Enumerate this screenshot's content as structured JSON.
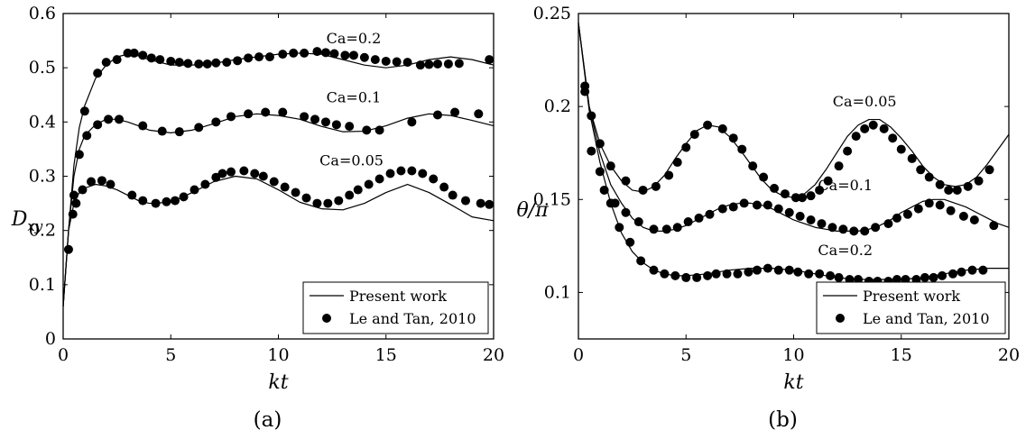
{
  "chart_data": [
    {
      "type": "line",
      "panel_label": "(a)",
      "xlabel": "kt",
      "ylabel": {
        "main": "D",
        "sub": "xy"
      },
      "xlim": [
        0,
        20
      ],
      "ylim": [
        0,
        0.6
      ],
      "xticks": [
        "0",
        "5",
        "10",
        "15",
        "20"
      ],
      "xtick_values": [
        0,
        5,
        10,
        15,
        20
      ],
      "yticks": [
        "0",
        "0.1",
        "0.2",
        "0.3",
        "0.4",
        "0.5",
        "0.6"
      ],
      "ytick_values": [
        0,
        0.1,
        0.2,
        0.3,
        0.4,
        0.5,
        0.6
      ],
      "legend": {
        "position": "bottom-right",
        "entries": [
          "Present work",
          "Le and Tan, 2010"
        ]
      },
      "annotations": [
        {
          "text": "Ca=0.2",
          "x": 13.5,
          "y": 0.545
        },
        {
          "text": "Ca=0.1",
          "x": 13.5,
          "y": 0.436
        },
        {
          "text": "Ca=0.05",
          "x": 13.4,
          "y": 0.32
        }
      ],
      "series": [
        {
          "label": "Ca=0.2",
          "kind": "line",
          "x": [
            0,
            0.25,
            0.5,
            0.75,
            1,
            1.5,
            2,
            2.5,
            3,
            3.5,
            4,
            5,
            6,
            7,
            8,
            9,
            10,
            11,
            12,
            13,
            14,
            15,
            16,
            17,
            18,
            19,
            20
          ],
          "y": [
            0.06,
            0.2,
            0.32,
            0.39,
            0.43,
            0.48,
            0.505,
            0.52,
            0.525,
            0.522,
            0.515,
            0.505,
            0.505,
            0.508,
            0.515,
            0.52,
            0.525,
            0.527,
            0.525,
            0.515,
            0.505,
            0.5,
            0.505,
            0.515,
            0.52,
            0.515,
            0.505
          ]
        },
        {
          "label": "Ca=0.2",
          "kind": "scatter",
          "x": [
            0.25,
            0.5,
            0.75,
            1,
            1.6,
            2,
            2.5,
            3,
            3.3,
            3.7,
            4.1,
            4.5,
            5,
            5.4,
            5.8,
            6.3,
            6.7,
            7.1,
            7.6,
            8.1,
            8.6,
            9.1,
            9.6,
            10.2,
            10.7,
            11.2,
            11.8,
            12.2,
            12.6,
            13.1,
            13.5,
            14,
            14.5,
            15,
            15.5,
            16,
            16.6,
            17,
            17.4,
            17.9,
            18.4,
            19.8
          ],
          "y": [
            0.165,
            0.265,
            0.34,
            0.42,
            0.49,
            0.51,
            0.515,
            0.527,
            0.527,
            0.523,
            0.518,
            0.515,
            0.512,
            0.51,
            0.508,
            0.507,
            0.507,
            0.509,
            0.51,
            0.513,
            0.518,
            0.52,
            0.52,
            0.525,
            0.527,
            0.527,
            0.53,
            0.528,
            0.526,
            0.523,
            0.523,
            0.519,
            0.515,
            0.512,
            0.511,
            0.51,
            0.505,
            0.506,
            0.507,
            0.507,
            0.508,
            0.515
          ]
        },
        {
          "label": "Ca=0.1",
          "kind": "line",
          "x": [
            0,
            0.25,
            0.5,
            0.75,
            1,
            1.5,
            2,
            2.5,
            3,
            3.5,
            4,
            5,
            6,
            7,
            8,
            9,
            10,
            11,
            12,
            13,
            14,
            15,
            16,
            17,
            18,
            19,
            20
          ],
          "y": [
            0.06,
            0.2,
            0.3,
            0.35,
            0.375,
            0.395,
            0.405,
            0.405,
            0.4,
            0.393,
            0.385,
            0.38,
            0.385,
            0.397,
            0.41,
            0.415,
            0.412,
            0.405,
            0.392,
            0.382,
            0.383,
            0.393,
            0.407,
            0.415,
            0.412,
            0.403,
            0.393
          ]
        },
        {
          "label": "Ca=0.1",
          "kind": "scatter",
          "x": [
            1.1,
            1.6,
            2.1,
            2.6,
            3.7,
            4.6,
            5.4,
            6.3,
            7.1,
            7.8,
            8.6,
            9.4,
            10.2,
            11.2,
            11.7,
            12.2,
            12.7,
            13.3,
            14.1,
            14.7,
            16.2,
            17.4,
            18.2,
            19.3
          ],
          "y": [
            0.375,
            0.395,
            0.405,
            0.405,
            0.393,
            0.383,
            0.382,
            0.39,
            0.4,
            0.41,
            0.415,
            0.418,
            0.418,
            0.41,
            0.405,
            0.4,
            0.395,
            0.392,
            0.385,
            0.385,
            0.4,
            0.413,
            0.418,
            0.415
          ]
        },
        {
          "label": "Ca=0.05",
          "kind": "line",
          "x": [
            0,
            0.25,
            0.5,
            0.75,
            1,
            1.5,
            2,
            2.5,
            3,
            3.5,
            4,
            5,
            6,
            7,
            8,
            9,
            10,
            11,
            12,
            13,
            14,
            15,
            16,
            17,
            18,
            19,
            20
          ],
          "y": [
            0.06,
            0.2,
            0.25,
            0.27,
            0.278,
            0.285,
            0.282,
            0.275,
            0.265,
            0.255,
            0.25,
            0.252,
            0.27,
            0.29,
            0.3,
            0.295,
            0.275,
            0.252,
            0.24,
            0.238,
            0.25,
            0.27,
            0.285,
            0.27,
            0.248,
            0.225,
            0.218
          ]
        },
        {
          "label": "Ca=0.05",
          "kind": "scatter",
          "x": [
            0.45,
            0.6,
            0.9,
            1.3,
            1.8,
            2.2,
            3.2,
            3.7,
            4.3,
            4.8,
            5.2,
            5.6,
            6.1,
            6.6,
            7.1,
            7.4,
            7.8,
            8.4,
            8.9,
            9.3,
            9.8,
            10.3,
            10.8,
            11.3,
            11.8,
            12.3,
            12.8,
            13.3,
            13.7,
            14.2,
            14.7,
            15.2,
            15.7,
            16.2,
            16.7,
            17.2,
            17.7,
            18.1,
            18.7,
            19.4,
            19.8
          ],
          "y": [
            0.23,
            0.25,
            0.275,
            0.29,
            0.292,
            0.285,
            0.265,
            0.255,
            0.25,
            0.253,
            0.255,
            0.262,
            0.275,
            0.285,
            0.298,
            0.305,
            0.308,
            0.31,
            0.305,
            0.3,
            0.29,
            0.28,
            0.27,
            0.26,
            0.25,
            0.25,
            0.255,
            0.265,
            0.275,
            0.285,
            0.295,
            0.305,
            0.31,
            0.31,
            0.305,
            0.295,
            0.28,
            0.265,
            0.255,
            0.25,
            0.248
          ]
        }
      ]
    },
    {
      "type": "line",
      "panel_label": "(b)",
      "xlabel": "kt",
      "ylabel": {
        "main": "θ/π"
      },
      "xlim": [
        0,
        20
      ],
      "ylim": [
        0.075,
        0.25
      ],
      "xticks": [
        "0",
        "5",
        "10",
        "15",
        "20"
      ],
      "xtick_values": [
        0,
        5,
        10,
        15,
        20
      ],
      "yticks": [
        "0.1",
        "0.15",
        "0.2",
        "0.25"
      ],
      "ytick_values": [
        0.1,
        0.15,
        0.2,
        0.25
      ],
      "legend": {
        "position": "bottom-right",
        "entries": [
          "Present work",
          "Le and Tan, 2010"
        ]
      },
      "annotations": [
        {
          "text": "Ca=0.05",
          "x": 13.3,
          "y": 0.2
        },
        {
          "text": "Ca=0.1",
          "x": 12.4,
          "y": 0.155
        },
        {
          "text": "Ca=0.2",
          "x": 12.4,
          "y": 0.12
        }
      ],
      "series": [
        {
          "label": "Ca=0.05",
          "kind": "line",
          "x": [
            0,
            0.5,
            1,
            1.5,
            2,
            2.5,
            3,
            3.5,
            4,
            4.5,
            5,
            5.5,
            6,
            6.5,
            7,
            7.5,
            8,
            8.5,
            9,
            9.5,
            10,
            10.5,
            11,
            11.5,
            12,
            12.5,
            13,
            13.5,
            14,
            14.5,
            15,
            15.5,
            16,
            16.5,
            17,
            17.5,
            18,
            18.5,
            19,
            19.5,
            20
          ],
          "y": [
            0.245,
            0.2,
            0.18,
            0.168,
            0.16,
            0.155,
            0.154,
            0.157,
            0.163,
            0.172,
            0.18,
            0.187,
            0.19,
            0.189,
            0.184,
            0.177,
            0.169,
            0.161,
            0.155,
            0.152,
            0.151,
            0.153,
            0.158,
            0.166,
            0.175,
            0.184,
            0.19,
            0.193,
            0.193,
            0.189,
            0.183,
            0.176,
            0.168,
            0.162,
            0.158,
            0.157,
            0.158,
            0.162,
            0.169,
            0.177,
            0.185
          ]
        },
        {
          "label": "Ca=0.05",
          "kind": "scatter",
          "x": [
            0.3,
            0.6,
            1,
            1.5,
            2.2,
            3,
            3.6,
            4.2,
            4.6,
            5,
            5.4,
            6,
            6.7,
            7.2,
            7.6,
            8.1,
            8.6,
            9.1,
            9.6,
            10.1,
            10.4,
            10.8,
            11.2,
            11.6,
            12.1,
            12.5,
            12.9,
            13.3,
            13.7,
            14.2,
            14.6,
            15,
            15.5,
            15.9,
            16.3,
            16.8,
            17.2,
            17.6,
            18.1,
            18.6,
            19.1
          ],
          "y": [
            0.208,
            0.195,
            0.18,
            0.168,
            0.16,
            0.155,
            0.157,
            0.163,
            0.17,
            0.178,
            0.185,
            0.19,
            0.188,
            0.183,
            0.177,
            0.168,
            0.162,
            0.156,
            0.153,
            0.151,
            0.151,
            0.152,
            0.155,
            0.16,
            0.168,
            0.176,
            0.184,
            0.188,
            0.19,
            0.188,
            0.183,
            0.177,
            0.172,
            0.166,
            0.162,
            0.158,
            0.155,
            0.155,
            0.157,
            0.16,
            0.166
          ]
        },
        {
          "label": "Ca=0.1",
          "kind": "line",
          "x": [
            0,
            0.5,
            1,
            1.5,
            2,
            2.5,
            3,
            3.5,
            4,
            4.5,
            5,
            5.5,
            6,
            6.5,
            7,
            7.5,
            8,
            8.5,
            9,
            9.5,
            10,
            10.5,
            11,
            11.5,
            12,
            12.5,
            13,
            13.5,
            14,
            14.5,
            15,
            15.5,
            16,
            16.5,
            17,
            17.5,
            18,
            18.5,
            19,
            19.5,
            20
          ],
          "y": [
            0.245,
            0.2,
            0.175,
            0.158,
            0.148,
            0.14,
            0.135,
            0.133,
            0.133,
            0.134,
            0.136,
            0.139,
            0.142,
            0.145,
            0.147,
            0.148,
            0.148,
            0.147,
            0.145,
            0.142,
            0.139,
            0.137,
            0.135,
            0.134,
            0.133,
            0.133,
            0.133,
            0.134,
            0.136,
            0.139,
            0.143,
            0.146,
            0.149,
            0.15,
            0.15,
            0.148,
            0.146,
            0.143,
            0.14,
            0.137,
            0.135
          ]
        },
        {
          "label": "Ca=0.1",
          "kind": "scatter",
          "x": [
            1.2,
            1.7,
            2.2,
            2.8,
            3.5,
            4.1,
            4.6,
            5.1,
            5.6,
            6.1,
            6.7,
            7.2,
            7.7,
            8.3,
            8.8,
            9.3,
            9.8,
            10.3,
            10.8,
            11.3,
            11.8,
            12.3,
            12.8,
            13.3,
            13.8,
            14.4,
            14.8,
            15.3,
            15.8,
            16.3,
            16.8,
            17.3,
            17.9,
            18.4,
            19.3
          ],
          "y": [
            0.155,
            0.148,
            0.143,
            0.138,
            0.134,
            0.134,
            0.135,
            0.138,
            0.14,
            0.142,
            0.145,
            0.146,
            0.148,
            0.147,
            0.147,
            0.145,
            0.143,
            0.141,
            0.139,
            0.137,
            0.135,
            0.134,
            0.133,
            0.133,
            0.135,
            0.137,
            0.14,
            0.142,
            0.145,
            0.148,
            0.147,
            0.144,
            0.141,
            0.139,
            0.136
          ]
        },
        {
          "label": "Ca=0.2",
          "kind": "line",
          "x": [
            0,
            0.5,
            1,
            1.5,
            2,
            2.5,
            3,
            3.5,
            4,
            4.5,
            5,
            6,
            7,
            8,
            9,
            10,
            11,
            12,
            13,
            14,
            15,
            16,
            17,
            18,
            19,
            20
          ],
          "y": [
            0.245,
            0.198,
            0.17,
            0.148,
            0.132,
            0.122,
            0.116,
            0.112,
            0.11,
            0.109,
            0.109,
            0.11,
            0.112,
            0.113,
            0.113,
            0.112,
            0.11,
            0.108,
            0.107,
            0.107,
            0.107,
            0.108,
            0.11,
            0.112,
            0.113,
            0.113
          ]
        },
        {
          "label": "Ca=0.2",
          "kind": "scatter",
          "x": [
            0.3,
            0.6,
            1,
            1.5,
            1.9,
            2.4,
            2.9,
            3.5,
            4,
            4.5,
            5,
            5.5,
            6,
            6.4,
            6.9,
            7.4,
            7.9,
            8.3,
            8.8,
            9.3,
            9.8,
            10.2,
            10.7,
            11.2,
            11.7,
            12.1,
            12.6,
            13,
            13.5,
            13.9,
            14.4,
            14.8,
            15.2,
            15.7,
            16.1,
            16.5,
            16.9,
            17.4,
            17.8,
            18.3,
            18.8
          ],
          "y": [
            0.211,
            0.176,
            0.165,
            0.148,
            0.135,
            0.127,
            0.117,
            0.112,
            0.11,
            0.109,
            0.108,
            0.108,
            0.109,
            0.11,
            0.11,
            0.11,
            0.111,
            0.112,
            0.113,
            0.112,
            0.112,
            0.111,
            0.11,
            0.11,
            0.109,
            0.108,
            0.107,
            0.107,
            0.106,
            0.106,
            0.106,
            0.107,
            0.107,
            0.107,
            0.108,
            0.108,
            0.109,
            0.11,
            0.111,
            0.112,
            0.112
          ]
        }
      ]
    }
  ]
}
